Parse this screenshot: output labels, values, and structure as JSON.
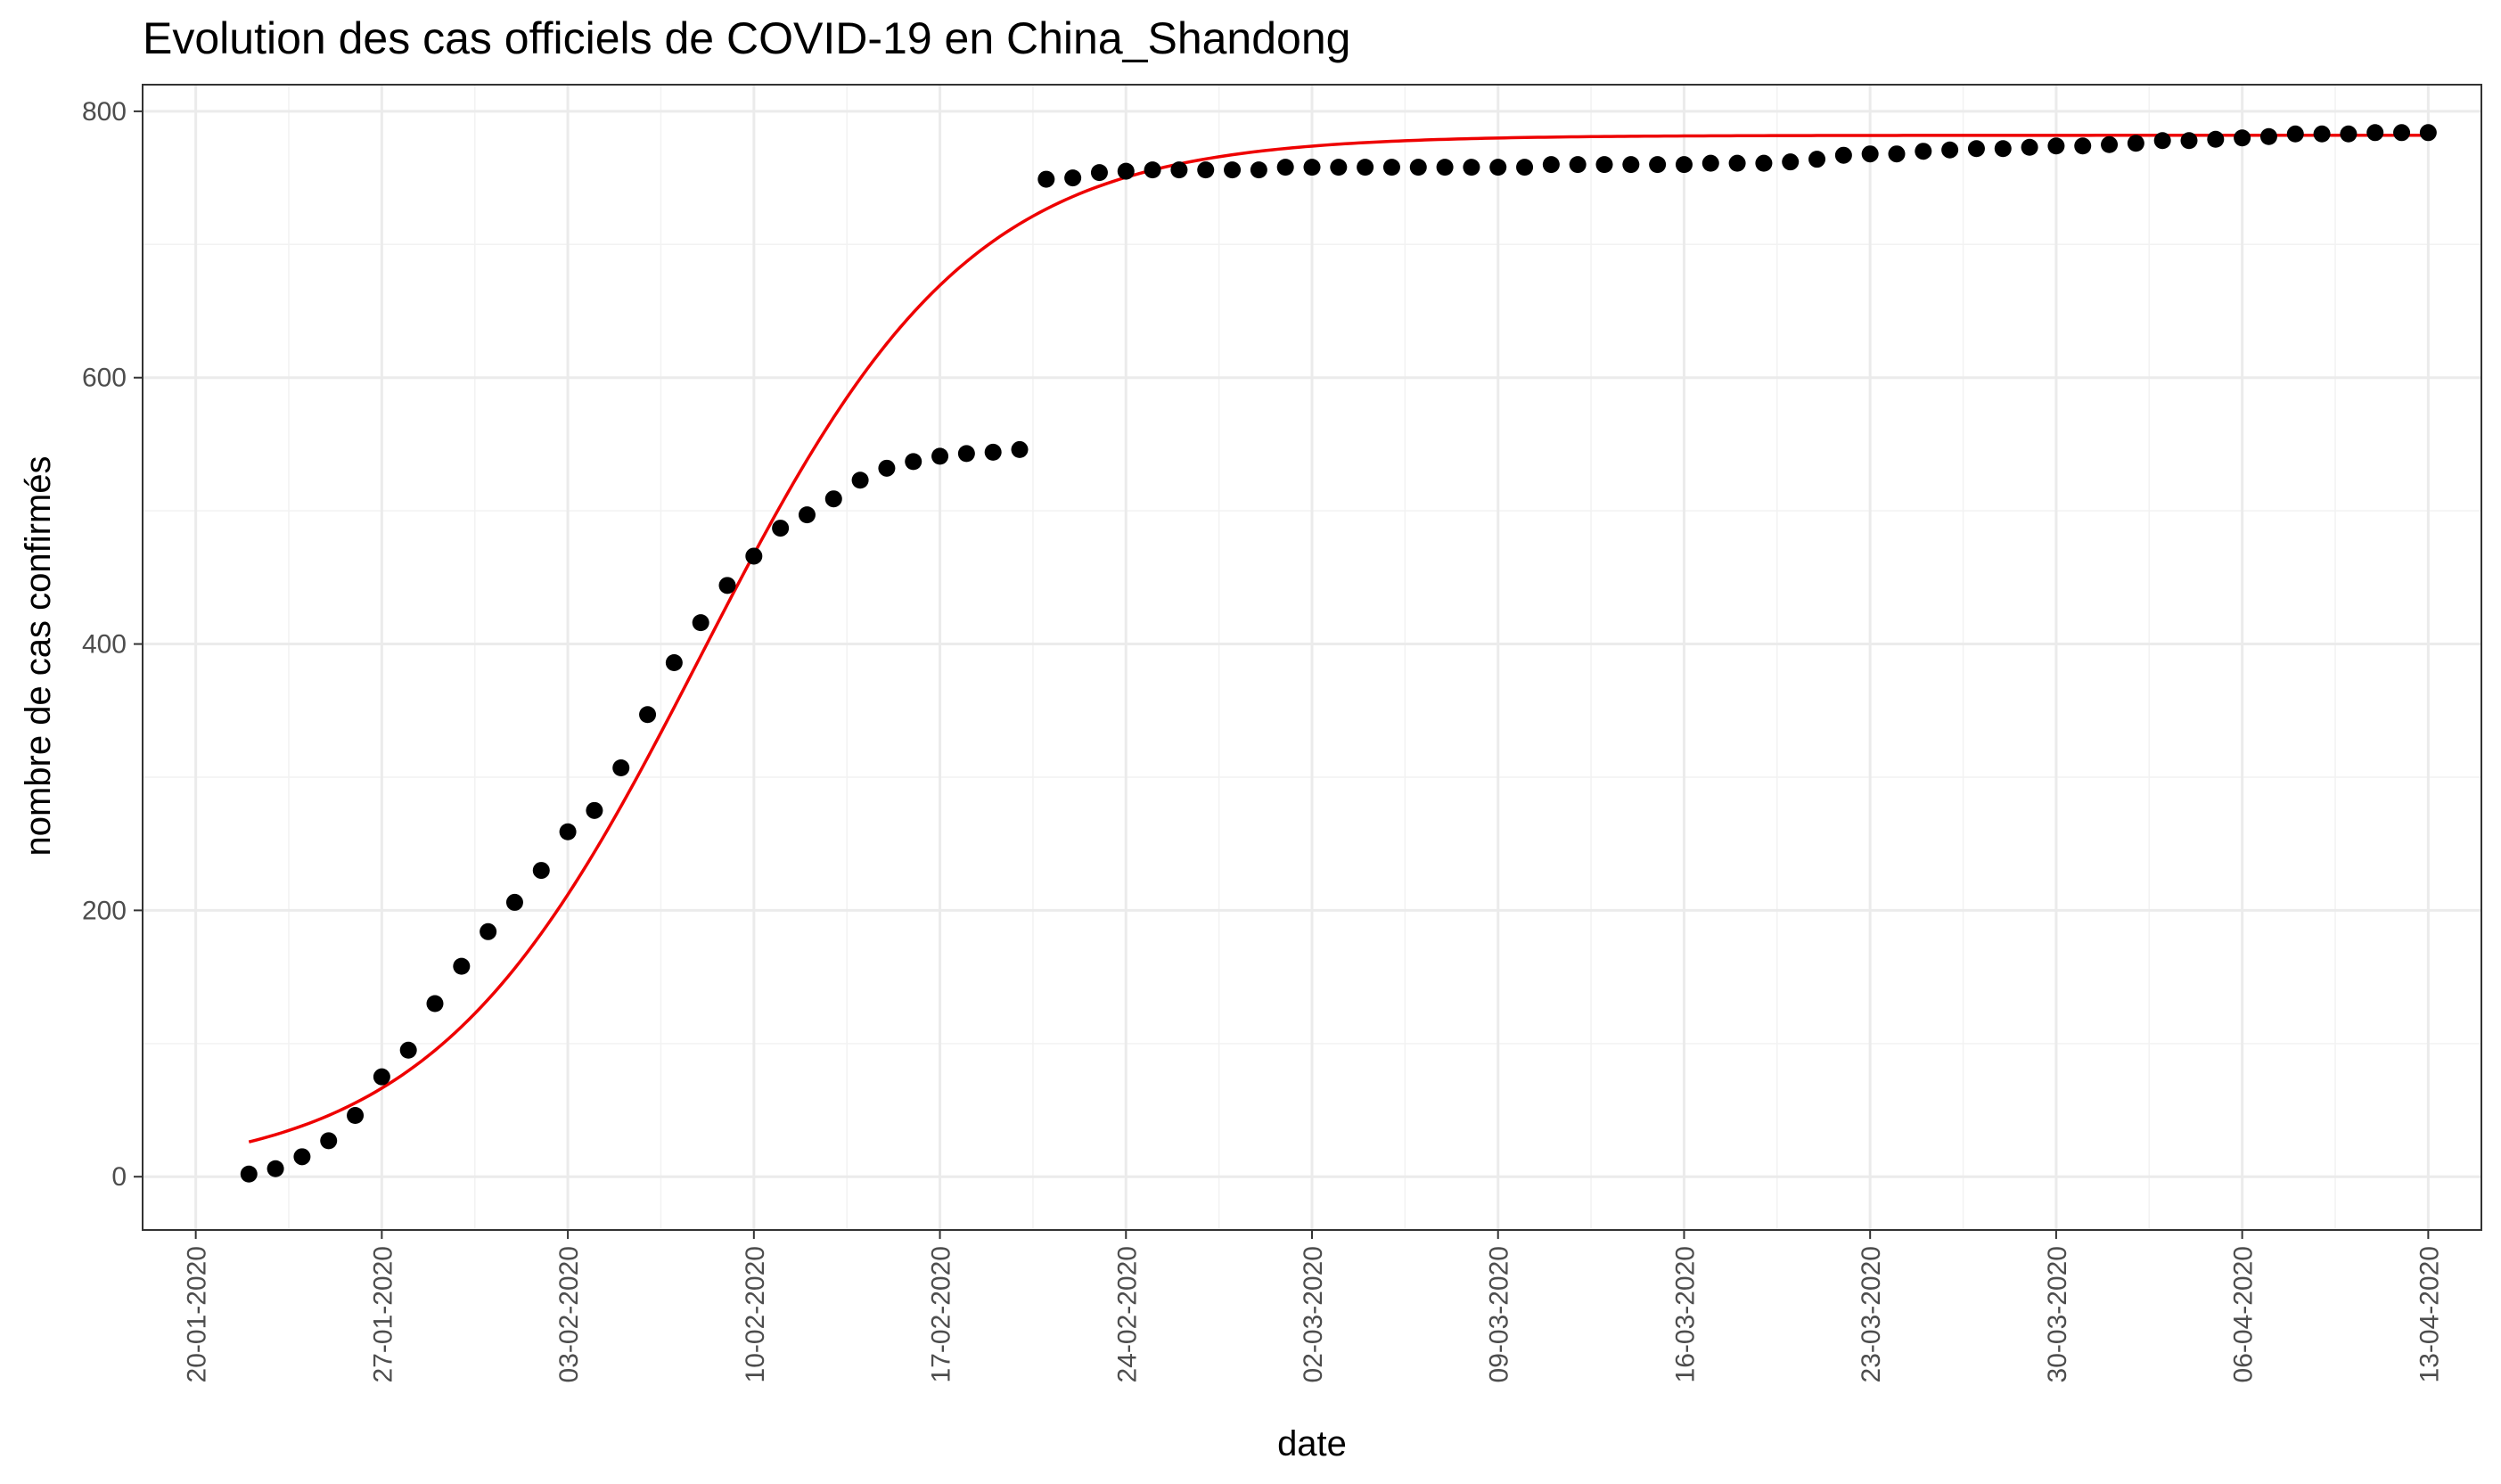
{
  "chart_data": {
    "type": "scatter",
    "title": "Evolution des cas officiels de COVID-19 en China_Shandong",
    "xlabel": "date",
    "ylabel": "nombre de cas confirmés",
    "xlim": [
      "2020-01-18",
      "2020-04-15"
    ],
    "ylim": [
      -40,
      820
    ],
    "x_ticks": [
      "20-01-2020",
      "27-01-2020",
      "03-02-2020",
      "10-02-2020",
      "17-02-2020",
      "24-02-2020",
      "02-03-2020",
      "09-03-2020",
      "16-03-2020",
      "23-03-2020",
      "30-03-2020",
      "06-04-2020",
      "13-04-2020"
    ],
    "y_ticks": [
      "0",
      "200",
      "400",
      "600",
      "800"
    ],
    "grid": true,
    "series": [
      {
        "type": "scatter",
        "color": "#000000",
        "x": [
          "2020-01-22",
          "2020-01-23",
          "2020-01-24",
          "2020-01-25",
          "2020-01-26",
          "2020-01-27",
          "2020-01-28",
          "2020-01-29",
          "2020-01-30",
          "2020-01-31",
          "2020-02-01",
          "2020-02-02",
          "2020-02-03",
          "2020-02-04",
          "2020-02-05",
          "2020-02-06",
          "2020-02-07",
          "2020-02-08",
          "2020-02-09",
          "2020-02-10",
          "2020-02-11",
          "2020-02-12",
          "2020-02-13",
          "2020-02-14",
          "2020-02-15",
          "2020-02-16",
          "2020-02-17",
          "2020-02-18",
          "2020-02-19",
          "2020-02-20",
          "2020-02-21",
          "2020-02-22",
          "2020-02-23",
          "2020-02-24",
          "2020-02-25",
          "2020-02-26",
          "2020-02-27",
          "2020-02-28",
          "2020-02-29",
          "2020-03-01",
          "2020-03-02",
          "2020-03-03",
          "2020-03-04",
          "2020-03-05",
          "2020-03-06",
          "2020-03-07",
          "2020-03-08",
          "2020-03-09",
          "2020-03-10",
          "2020-03-11",
          "2020-03-12",
          "2020-03-13",
          "2020-03-14",
          "2020-03-15",
          "2020-03-16",
          "2020-03-17",
          "2020-03-18",
          "2020-03-19",
          "2020-03-20",
          "2020-03-21",
          "2020-03-22",
          "2020-03-23",
          "2020-03-24",
          "2020-03-25",
          "2020-03-26",
          "2020-03-27",
          "2020-03-28",
          "2020-03-29",
          "2020-03-30",
          "2020-03-31",
          "2020-04-01",
          "2020-04-02",
          "2020-04-03",
          "2020-04-04",
          "2020-04-05",
          "2020-04-06",
          "2020-04-07",
          "2020-04-08",
          "2020-04-09",
          "2020-04-10",
          "2020-04-11",
          "2020-04-12",
          "2020-04-13"
        ],
        "y": [
          2,
          6,
          15,
          27,
          46,
          75,
          95,
          130,
          158,
          184,
          206,
          230,
          259,
          275,
          307,
          347,
          386,
          416,
          444,
          466,
          487,
          497,
          509,
          523,
          532,
          537,
          541,
          543,
          544,
          546,
          749,
          750,
          754,
          755,
          756,
          756,
          756,
          756,
          756,
          758,
          758,
          758,
          758,
          758,
          758,
          758,
          758,
          758,
          758,
          760,
          760,
          760,
          760,
          760,
          760,
          761,
          761,
          761,
          762,
          764,
          767,
          768,
          768,
          770,
          771,
          772,
          772,
          773,
          774,
          774,
          775,
          776,
          778,
          778,
          779,
          780,
          781,
          783,
          783,
          783,
          784,
          784,
          784
        ]
      },
      {
        "type": "line",
        "color": "#ee0000",
        "model": "logistic",
        "K": 782,
        "r": 0.198,
        "t0": "2020-02-08",
        "x_start": "2020-01-22",
        "x_end": "2020-04-13"
      }
    ]
  }
}
